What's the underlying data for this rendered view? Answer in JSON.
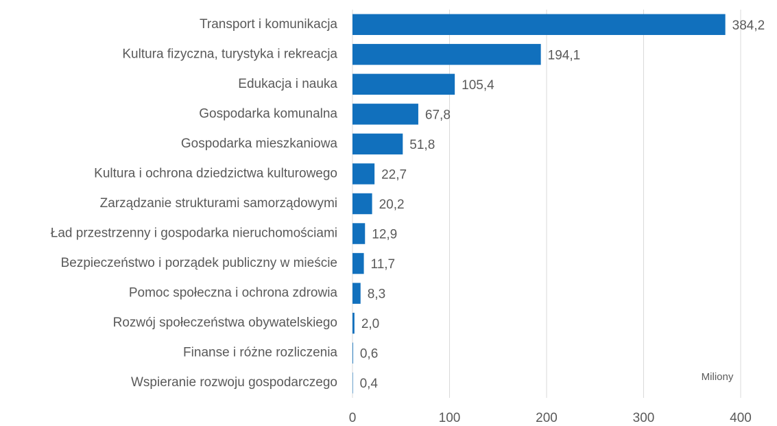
{
  "chart_data": {
    "type": "bar",
    "orientation": "horizontal",
    "categories": [
      "Transport i komunikacja",
      "Kultura fizyczna, turystyka i rekreacja",
      "Edukacja i nauka",
      "Gospodarka komunalna",
      "Gospodarka mieszkaniowa",
      "Kultura i ochrona dziedzictwa kulturowego",
      "Zarządzanie strukturami samorządowymi",
      "Ład przestrzenny i gospodarka nieruchomościami",
      "Bezpieczeństwo i porządek publiczny w mieście",
      "Pomoc społeczna i ochrona zdrowia",
      "Rozwój społeczeństwa obywatelskiego",
      "Finanse i różne rozliczenia",
      "Wspieranie rozwoju gospodarczego"
    ],
    "values": [
      384.2,
      194.1,
      105.4,
      67.8,
      51.8,
      22.7,
      20.2,
      12.9,
      11.7,
      8.3,
      2.0,
      0.6,
      0.4
    ],
    "value_labels": [
      "384,2",
      "194,1",
      "105,4",
      "67,8",
      "51,8",
      "22,7",
      "20,2",
      "12,9",
      "11,7",
      "8,3",
      "2,0",
      "0,6",
      "0,4"
    ],
    "color": "#1170bd",
    "xlabel": "Miliony",
    "xlim": [
      0,
      400
    ],
    "xticks": [
      0,
      100,
      200,
      300,
      400
    ],
    "grid": true
  }
}
